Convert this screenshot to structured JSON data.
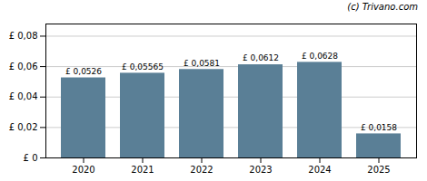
{
  "chart_data": {
    "type": "bar",
    "categories": [
      "2020",
      "2021",
      "2022",
      "2023",
      "2024",
      "2025"
    ],
    "values": [
      0.0526,
      0.05565,
      0.0581,
      0.0612,
      0.0628,
      0.0158
    ],
    "value_labels": [
      "£ 0,0526",
      "£ 0,05565",
      "£ 0,0581",
      "£ 0,0612",
      "£ 0,0628",
      "£ 0,0158"
    ],
    "data_labels": true,
    "color": "#5a7f96",
    "ylim": [
      0,
      0.088
    ],
    "yticks": [
      {
        "value": 0,
        "label": "£ 0"
      },
      {
        "value": 0.02,
        "label": "£ 0,02"
      },
      {
        "value": 0.04,
        "label": "£ 0,04"
      },
      {
        "value": 0.06,
        "label": "£ 0,06"
      },
      {
        "value": 0.08,
        "label": "£ 0,08"
      }
    ],
    "grid": true,
    "annotations": [
      "(c) Trivano.com"
    ]
  }
}
